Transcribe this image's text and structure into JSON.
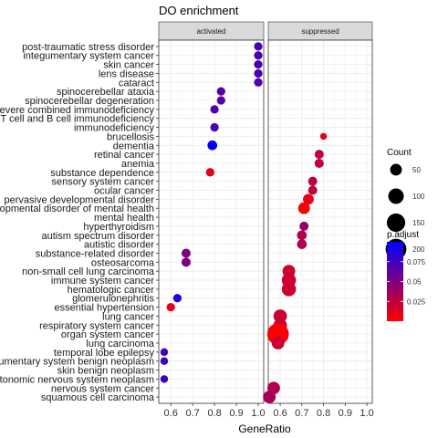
{
  "chart_data": {
    "type": "scatter",
    "title": "DO enrichment",
    "xlabel": "GeneRatio",
    "ylabel": "",
    "x_ticks": [
      "0.6",
      "0.7",
      "0.8",
      "0.9",
      "1.0"
    ],
    "xlim": [
      0.545,
      1.025
    ],
    "facets": [
      "activated",
      "suppressed"
    ],
    "categories": [
      "post-traumatic stress disorder",
      "integumentary system cancer",
      "skin cancer",
      "lens disease",
      "cataract",
      "spinocerebellar ataxia",
      "spinocerebellar degeneration",
      "severe combined immunodeficiency",
      "combined T cell and B cell immunodeficiency",
      "immunodeficiency",
      "brucellosis",
      "dementia",
      "retinal cancer",
      "anemia",
      "substance dependence",
      "sensory system cancer",
      "ocular cancer",
      "pervasive developmental disorder",
      "developmental disorder of mental health",
      "mental health",
      "hyperthyroidism",
      "autism spectrum disorder",
      "autistic disorder",
      "substance-related disorder",
      "osteosarcoma",
      "non-small cell lung carcinoma",
      "immune system cancer",
      "hematologic cancer",
      "glomerulonephritis",
      "essential hypertension",
      "lung cancer",
      "respiratory system cancer",
      "organ system cancer",
      "lung carcinoma",
      "temporal lobe epilepsy",
      "integumentary system benign neoplasm",
      "skin benign neoplasm",
      "autonomic nervous system neoplasm",
      "nervous system cancer",
      "squamous cell carcinoma"
    ],
    "series": [
      {
        "name": "activated",
        "points": [
          {
            "y": "post-traumatic stress disorder",
            "x": 1.0,
            "count": 20,
            "p_adjust": 0.07
          },
          {
            "y": "integumentary system cancer",
            "x": 1.0,
            "count": 20,
            "p_adjust": 0.07
          },
          {
            "y": "skin cancer",
            "x": 1.0,
            "count": 20,
            "p_adjust": 0.07
          },
          {
            "y": "lens disease",
            "x": 1.0,
            "count": 20,
            "p_adjust": 0.07
          },
          {
            "y": "cataract",
            "x": 1.0,
            "count": 20,
            "p_adjust": 0.07
          },
          {
            "y": "spinocerebellar ataxia",
            "x": 0.83,
            "count": 20,
            "p_adjust": 0.065
          },
          {
            "y": "spinocerebellar degeneration",
            "x": 0.83,
            "count": 20,
            "p_adjust": 0.065
          },
          {
            "y": "severe combined immunodeficiency",
            "x": 0.8,
            "count": 20,
            "p_adjust": 0.07
          },
          {
            "y": "immunodeficiency",
            "x": 0.8,
            "count": 20,
            "p_adjust": 0.07
          },
          {
            "y": "dementia",
            "x": 0.79,
            "count": 30,
            "p_adjust": 0.1
          },
          {
            "y": "substance dependence",
            "x": 0.78,
            "count": 20,
            "p_adjust": 0.012
          },
          {
            "y": "substance-related disorder",
            "x": 0.67,
            "count": 25,
            "p_adjust": 0.05
          },
          {
            "y": "osteosarcoma",
            "x": 0.67,
            "count": 25,
            "p_adjust": 0.05
          },
          {
            "y": "glomerulonephritis",
            "x": 0.63,
            "count": 20,
            "p_adjust": 0.09
          },
          {
            "y": "essential hypertension",
            "x": 0.6,
            "count": 20,
            "p_adjust": 0.01
          },
          {
            "y": "temporal lobe epilepsy",
            "x": 0.57,
            "count": 15,
            "p_adjust": 0.075
          },
          {
            "y": "integumentary system benign neoplasm",
            "x": 0.57,
            "count": 15,
            "p_adjust": 0.075
          },
          {
            "y": "autonomic nervous system neoplasm",
            "x": 0.57,
            "count": 15,
            "p_adjust": 0.075
          }
        ]
      },
      {
        "name": "suppressed",
        "points": [
          {
            "y": "brucellosis",
            "x": 0.8,
            "count": 10,
            "p_adjust": 0.01
          },
          {
            "y": "retinal cancer",
            "x": 0.78,
            "count": 25,
            "p_adjust": 0.025
          },
          {
            "y": "anemia",
            "x": 0.78,
            "count": 25,
            "p_adjust": 0.025
          },
          {
            "y": "sensory system cancer",
            "x": 0.75,
            "count": 25,
            "p_adjust": 0.025
          },
          {
            "y": "ocular cancer",
            "x": 0.75,
            "count": 25,
            "p_adjust": 0.025
          },
          {
            "y": "pervasive developmental disorder",
            "x": 0.73,
            "count": 40,
            "p_adjust": 0.008
          },
          {
            "y": "developmental disorder of mental health",
            "x": 0.71,
            "count": 50,
            "p_adjust": 0.003
          },
          {
            "y": "hyperthyroidism",
            "x": 0.71,
            "count": 25,
            "p_adjust": 0.04
          },
          {
            "y": "autism spectrum disorder",
            "x": 0.7,
            "count": 30,
            "p_adjust": 0.03
          },
          {
            "y": "autistic disorder",
            "x": 0.7,
            "count": 30,
            "p_adjust": 0.03
          },
          {
            "y": "non-small cell lung carcinoma",
            "x": 0.64,
            "count": 60,
            "p_adjust": 0.02
          },
          {
            "y": "immune system cancer",
            "x": 0.64,
            "count": 80,
            "p_adjust": 0.02
          },
          {
            "y": "hematologic cancer",
            "x": 0.64,
            "count": 80,
            "p_adjust": 0.02
          },
          {
            "y": "lung cancer",
            "x": 0.6,
            "count": 70,
            "p_adjust": 0.02
          },
          {
            "y": "respiratory system cancer",
            "x": 0.6,
            "count": 70,
            "p_adjust": 0.02
          },
          {
            "y": "organ system cancer",
            "x": 0.59,
            "count": 220,
            "p_adjust": 0.001
          },
          {
            "y": "lung carcinoma",
            "x": 0.59,
            "count": 60,
            "p_adjust": 0.02
          },
          {
            "y": "nervous system cancer",
            "x": 0.57,
            "count": 60,
            "p_adjust": 0.03
          },
          {
            "y": "squamous cell carcinoma",
            "x": 0.55,
            "count": 60,
            "p_adjust": 0.035
          }
        ]
      }
    ],
    "legend": {
      "count": {
        "title": "Count",
        "values": [
          50,
          100,
          150,
          200
        ]
      },
      "p_adjust": {
        "title": "p.adjust",
        "ticks": [
          0.075,
          0.05,
          0.025
        ],
        "range": [
          0.0,
          0.1
        ],
        "low_color": "#ff0000",
        "high_color": "#0000ff"
      }
    },
    "grid": true,
    "legend_position": "right"
  }
}
